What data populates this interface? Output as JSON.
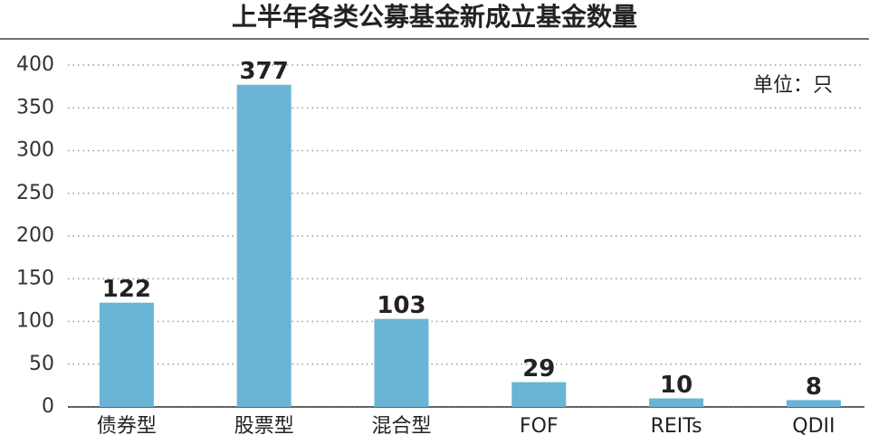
{
  "chart_data": {
    "type": "bar",
    "title": "上半年各类公募基金新成立基金数量",
    "annotation": "单位：只",
    "categories": [
      "债券型",
      "股票型",
      "混合型",
      "FOF",
      "REITs",
      "QDII"
    ],
    "values": [
      122,
      377,
      103,
      29,
      10,
      8
    ],
    "color": "#6ab4d6",
    "ylim": [
      0,
      400
    ],
    "yticks": [
      0,
      50,
      100,
      150,
      200,
      250,
      300,
      350,
      400
    ],
    "grid": true
  }
}
